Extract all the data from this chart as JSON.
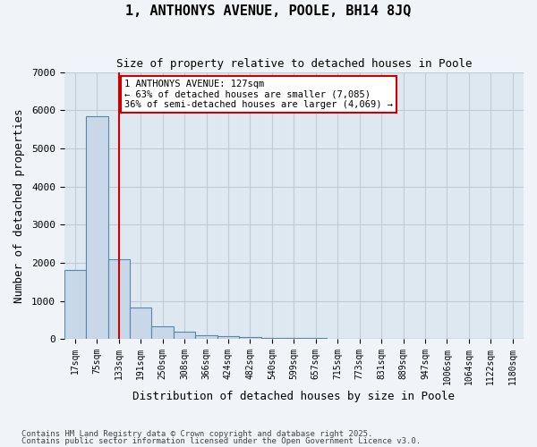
{
  "title1": "1, ANTHONYS AVENUE, POOLE, BH14 8JQ",
  "title2": "Size of property relative to detached houses in Poole",
  "xlabel": "Distribution of detached houses by size in Poole",
  "ylabel": "Number of detached properties",
  "bar_color": "#c8d8e8",
  "bar_edge_color": "#5588aa",
  "grid_color": "#c0ccd8",
  "background_color": "#dde8f0",
  "bin_labels": [
    "17sqm",
    "75sqm",
    "133sqm",
    "191sqm",
    "250sqm",
    "308sqm",
    "366sqm",
    "424sqm",
    "482sqm",
    "540sqm",
    "599sqm",
    "657sqm",
    "715sqm",
    "773sqm",
    "831sqm",
    "889sqm",
    "947sqm",
    "1006sqm",
    "1064sqm",
    "1122sqm",
    "1180sqm"
  ],
  "bar_heights": [
    1800,
    5850,
    2080,
    820,
    330,
    190,
    110,
    80,
    60,
    40,
    30,
    20,
    10,
    5,
    3,
    2,
    1,
    1,
    1,
    1,
    0
  ],
  "vline_color": "#cc0000",
  "annotation_text": "1 ANTHONYS AVENUE: 127sqm\n← 63% of detached houses are smaller (7,085)\n36% of semi-detached houses are larger (4,069) →",
  "annotation_box_color": "#ffffff",
  "annotation_box_edge": "#cc0000",
  "footer1": "Contains HM Land Registry data © Crown copyright and database right 2025.",
  "footer2": "Contains public sector information licensed under the Open Government Licence v3.0.",
  "ylim": [
    0,
    7000
  ],
  "yticks": [
    0,
    1000,
    2000,
    3000,
    4000,
    5000,
    6000,
    7000
  ]
}
